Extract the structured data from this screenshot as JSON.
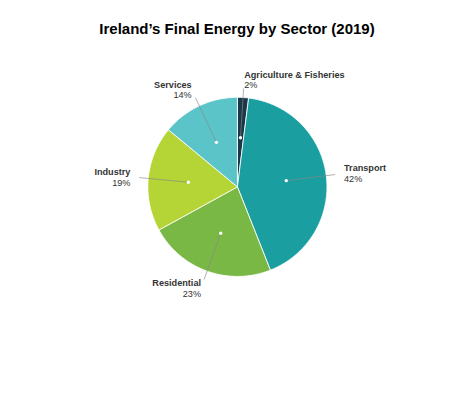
{
  "chart_data": {
    "type": "pie",
    "title": "Ireland’s Final Energy by Sector (2019)",
    "categories": [
      "Agriculture & Fisheries",
      "Transport",
      "Residential",
      "Industry",
      "Services"
    ],
    "values": [
      2,
      42,
      23,
      19,
      14
    ],
    "value_labels": [
      "2%",
      "42%",
      "23%",
      "19%",
      "14%"
    ],
    "data_labels": true,
    "colors": [
      "#1a3848",
      "#1a9ea0",
      "#7ab845",
      "#b5d435",
      "#5bc4c8"
    ]
  }
}
